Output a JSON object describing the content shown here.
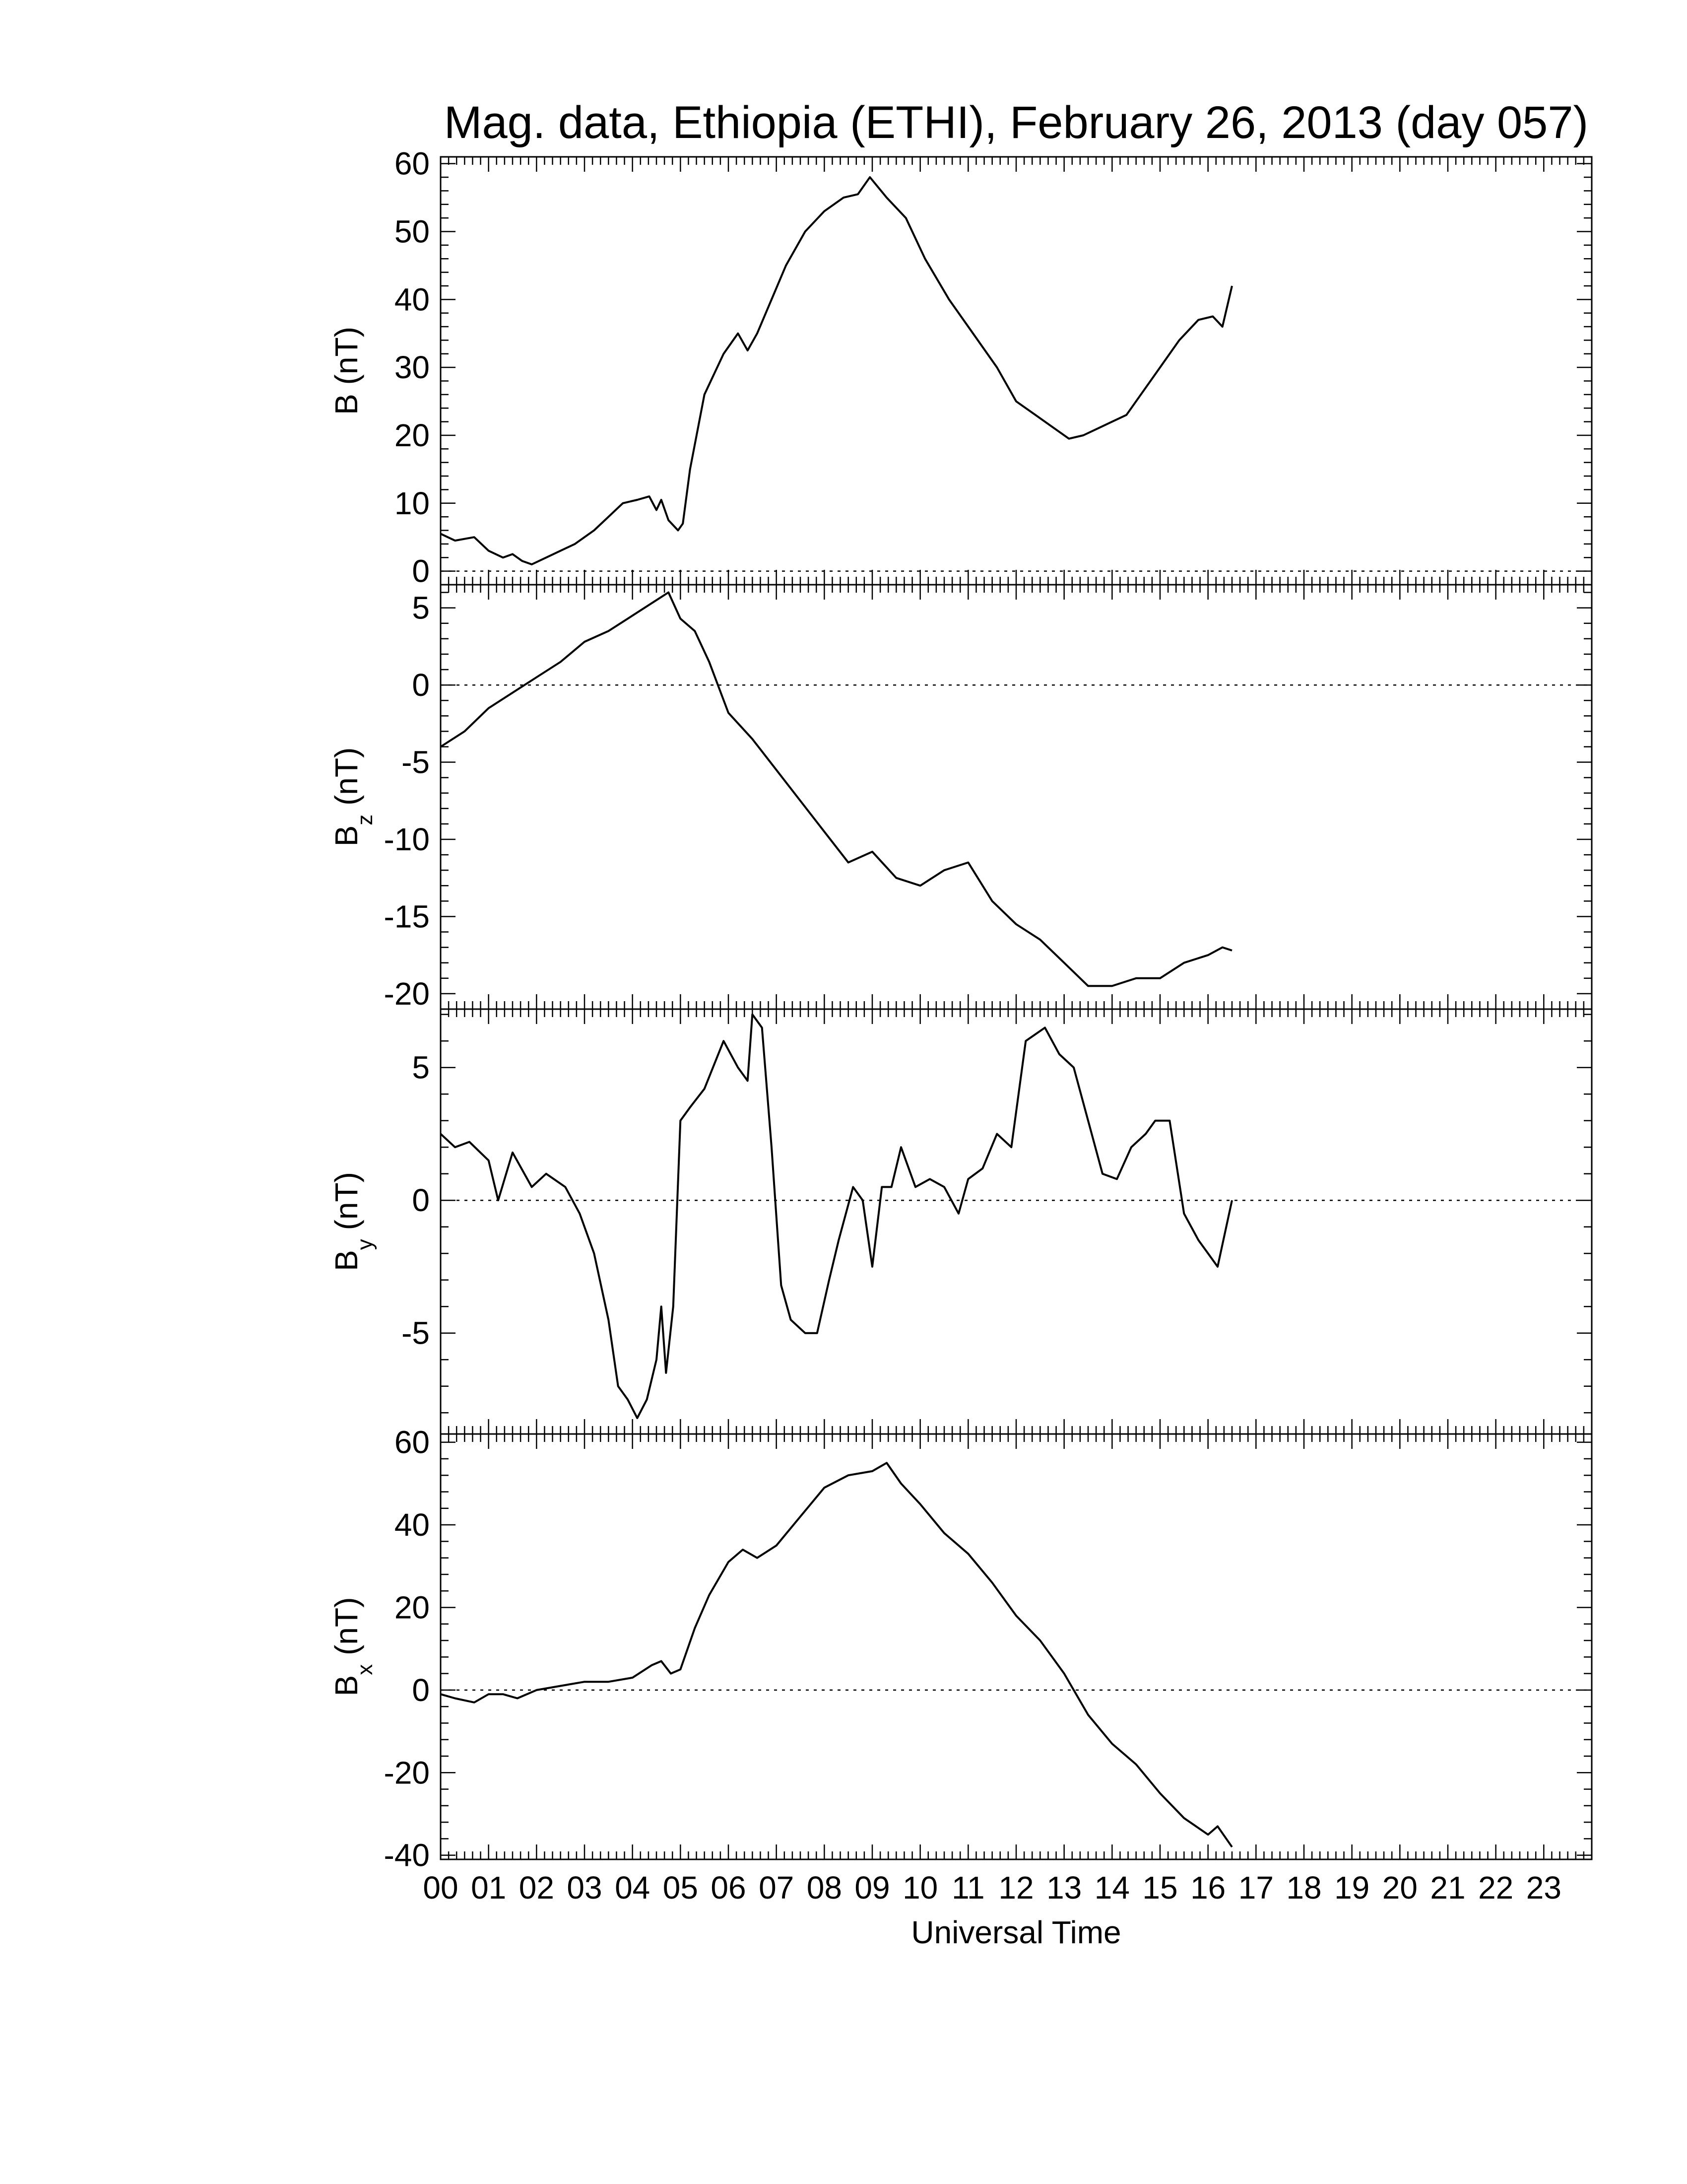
{
  "title": "Mag. data, Ethiopia (ETHI), February 26, 2013 (day 057)",
  "colors": {
    "line": "#000000",
    "background": "#ffffff",
    "zero_line": "#000000"
  },
  "chart_data": {
    "type": "line",
    "title": "Mag. data, Ethiopia (ETHI), February 26, 2013 (day 057)",
    "xlabel": "Universal Time",
    "x_unit": "hours UT",
    "xlim": [
      0,
      24
    ],
    "x_tick_labels": [
      "00",
      "01",
      "02",
      "03",
      "04",
      "05",
      "06",
      "07",
      "08",
      "09",
      "10",
      "11",
      "12",
      "13",
      "14",
      "15",
      "16",
      "17",
      "18",
      "19",
      "20",
      "21",
      "22",
      "23"
    ],
    "grid": false,
    "legend": "none",
    "panels": [
      {
        "ylabel_main": "B",
        "ylabel_sub": "",
        "ylabel_unit": "(nT)",
        "ylim": [
          -2,
          61
        ],
        "yticks": [
          0,
          10,
          20,
          30,
          40,
          50,
          60
        ],
        "ytick_labels": [
          "0",
          "10",
          "20",
          "30",
          "40",
          "50",
          "60"
        ],
        "zero_line": true,
        "series": [
          {
            "x": [
              0,
              0.3,
              0.7,
              1,
              1.3,
              1.5,
              1.7,
              1.9,
              2.2,
              2.5,
              2.8,
              3.2,
              3.5,
              3.8,
              4.1,
              4.35,
              4.5,
              4.6,
              4.75,
              4.95,
              5.05,
              5.2,
              5.5,
              5.9,
              6.2,
              6.4,
              6.6,
              6.9,
              7.2,
              7.6,
              8,
              8.4,
              8.7,
              8.95,
              9.3,
              9.7,
              10.1,
              10.6,
              11.1,
              11.6,
              12,
              12.4,
              12.8,
              13.1,
              13.4,
              13.7,
              14,
              14.3,
              14.6,
              15,
              15.4,
              15.8,
              16.1,
              16.3,
              16.5
            ],
            "y": [
              5.5,
              4.5,
              5,
              3,
              2,
              2.5,
              1.5,
              1,
              2,
              3,
              4,
              6,
              8,
              10,
              10.5,
              11,
              9,
              10.5,
              7.5,
              6,
              7,
              15,
              26,
              32,
              35,
              32.5,
              35,
              40,
              45,
              50,
              53,
              55,
              55.5,
              58,
              55,
              52,
              46,
              40,
              35,
              30,
              25,
              23,
              21,
              19.5,
              20,
              21,
              22,
              23,
              26,
              30,
              34,
              37,
              37.5,
              36,
              42
            ]
          }
        ]
      },
      {
        "ylabel_main": "B",
        "ylabel_sub": "z",
        "ylabel_unit": "(nT)",
        "ylim": [
          -21,
          6.5
        ],
        "yticks": [
          -20,
          -15,
          -10,
          -5,
          0,
          5
        ],
        "ytick_labels": [
          "-20",
          "-15",
          "-10",
          "-5",
          "0",
          "5"
        ],
        "zero_line": true,
        "series": [
          {
            "x": [
              0,
              0.5,
              1,
              1.5,
              2,
              2.5,
              3,
              3.5,
              4,
              4.5,
              4.75,
              5,
              5.3,
              5.6,
              6,
              6.5,
              7,
              7.5,
              8,
              8.5,
              9,
              9.5,
              10,
              10.5,
              11,
              11.5,
              12,
              12.5,
              13,
              13.5,
              14,
              14.5,
              15,
              15.5,
              16,
              16.3,
              16.5
            ],
            "y": [
              -4,
              -3,
              -1.5,
              -0.5,
              0.5,
              1.5,
              2.8,
              3.5,
              4.5,
              5.5,
              6,
              4.3,
              3.5,
              1.5,
              -1.8,
              -3.5,
              -5.5,
              -7.5,
              -9.5,
              -11.5,
              -10.8,
              -12.5,
              -13,
              -12,
              -11.5,
              -14,
              -15.5,
              -16.5,
              -18,
              -19.5,
              -19.5,
              -19,
              -19,
              -18,
              -17.5,
              -17,
              -17.2
            ]
          }
        ]
      },
      {
        "ylabel_main": "B",
        "ylabel_sub": "y",
        "ylabel_unit": "(nT)",
        "ylim": [
          -8.8,
          7.2
        ],
        "yticks": [
          -5,
          0,
          5
        ],
        "ytick_labels": [
          "-5",
          "0",
          "5"
        ],
        "zero_line": true,
        "series": [
          {
            "x": [
              0,
              0.3,
              0.6,
              1,
              1.2,
              1.5,
              1.9,
              2.2,
              2.6,
              2.9,
              3.2,
              3.5,
              3.7,
              3.9,
              4.1,
              4.3,
              4.5,
              4.6,
              4.7,
              4.85,
              5,
              5.2,
              5.5,
              5.9,
              6.2,
              6.4,
              6.5,
              6.7,
              6.9,
              7.1,
              7.3,
              7.6,
              7.85,
              8.1,
              8.3,
              8.6,
              8.8,
              9,
              9.2,
              9.4,
              9.6,
              9.9,
              10.2,
              10.5,
              10.8,
              11,
              11.3,
              11.6,
              11.9,
              12.2,
              12.6,
              12.9,
              13.2,
              13.5,
              13.8,
              14.1,
              14.4,
              14.7,
              14.9,
              15.2,
              15.5,
              15.8,
              16,
              16.2,
              16.5
            ],
            "y": [
              2.5,
              2,
              2.2,
              1.5,
              0,
              1.8,
              0.5,
              1,
              0.5,
              -0.5,
              -2,
              -4.5,
              -7,
              -7.5,
              -8.2,
              -7.5,
              -6,
              -4,
              -6.5,
              -4,
              3,
              3.5,
              4.2,
              6,
              5,
              4.5,
              7,
              6.5,
              2,
              -3.2,
              -4.5,
              -5,
              -5,
              -3,
              -1.5,
              0.5,
              0,
              -2.5,
              0.5,
              0.5,
              2,
              0.5,
              0.8,
              0.5,
              -0.5,
              0.8,
              1.2,
              2.5,
              2,
              6,
              6.5,
              5.5,
              5,
              3,
              1,
              0.8,
              2,
              2.5,
              3,
              3,
              -0.5,
              -1.5,
              -2,
              -2.5,
              0
            ]
          }
        ]
      },
      {
        "ylabel_main": "B",
        "ylabel_sub": "x",
        "ylabel_unit": "(nT)",
        "ylim": [
          -41,
          62
        ],
        "yticks": [
          -40,
          -20,
          0,
          20,
          40,
          60
        ],
        "ytick_labels": [
          "-40",
          "-20",
          "0",
          "20",
          "40",
          "60"
        ],
        "zero_line": true,
        "series": [
          {
            "x": [
              0,
              0.3,
              0.7,
              1,
              1.3,
              1.6,
              2,
              2.5,
              3,
              3.5,
              4,
              4.4,
              4.6,
              4.8,
              5,
              5.3,
              5.6,
              6,
              6.3,
              6.6,
              7,
              7.5,
              8,
              8.5,
              9,
              9.3,
              9.6,
              10,
              10.5,
              11,
              11.5,
              12,
              12.5,
              13,
              13.5,
              14,
              14.5,
              15,
              15.5,
              16,
              16.2,
              16.5
            ],
            "y": [
              -1,
              -2,
              -3,
              -1,
              -1,
              -2,
              0,
              1,
              2,
              2,
              3,
              6,
              7,
              4,
              5,
              15,
              23,
              31,
              34,
              32,
              35,
              42,
              49,
              52,
              53,
              55,
              50,
              45,
              38,
              33,
              26,
              18,
              12,
              4,
              -6,
              -13,
              -18,
              -25,
              -31,
              -35,
              -33,
              -38
            ]
          }
        ]
      }
    ]
  }
}
